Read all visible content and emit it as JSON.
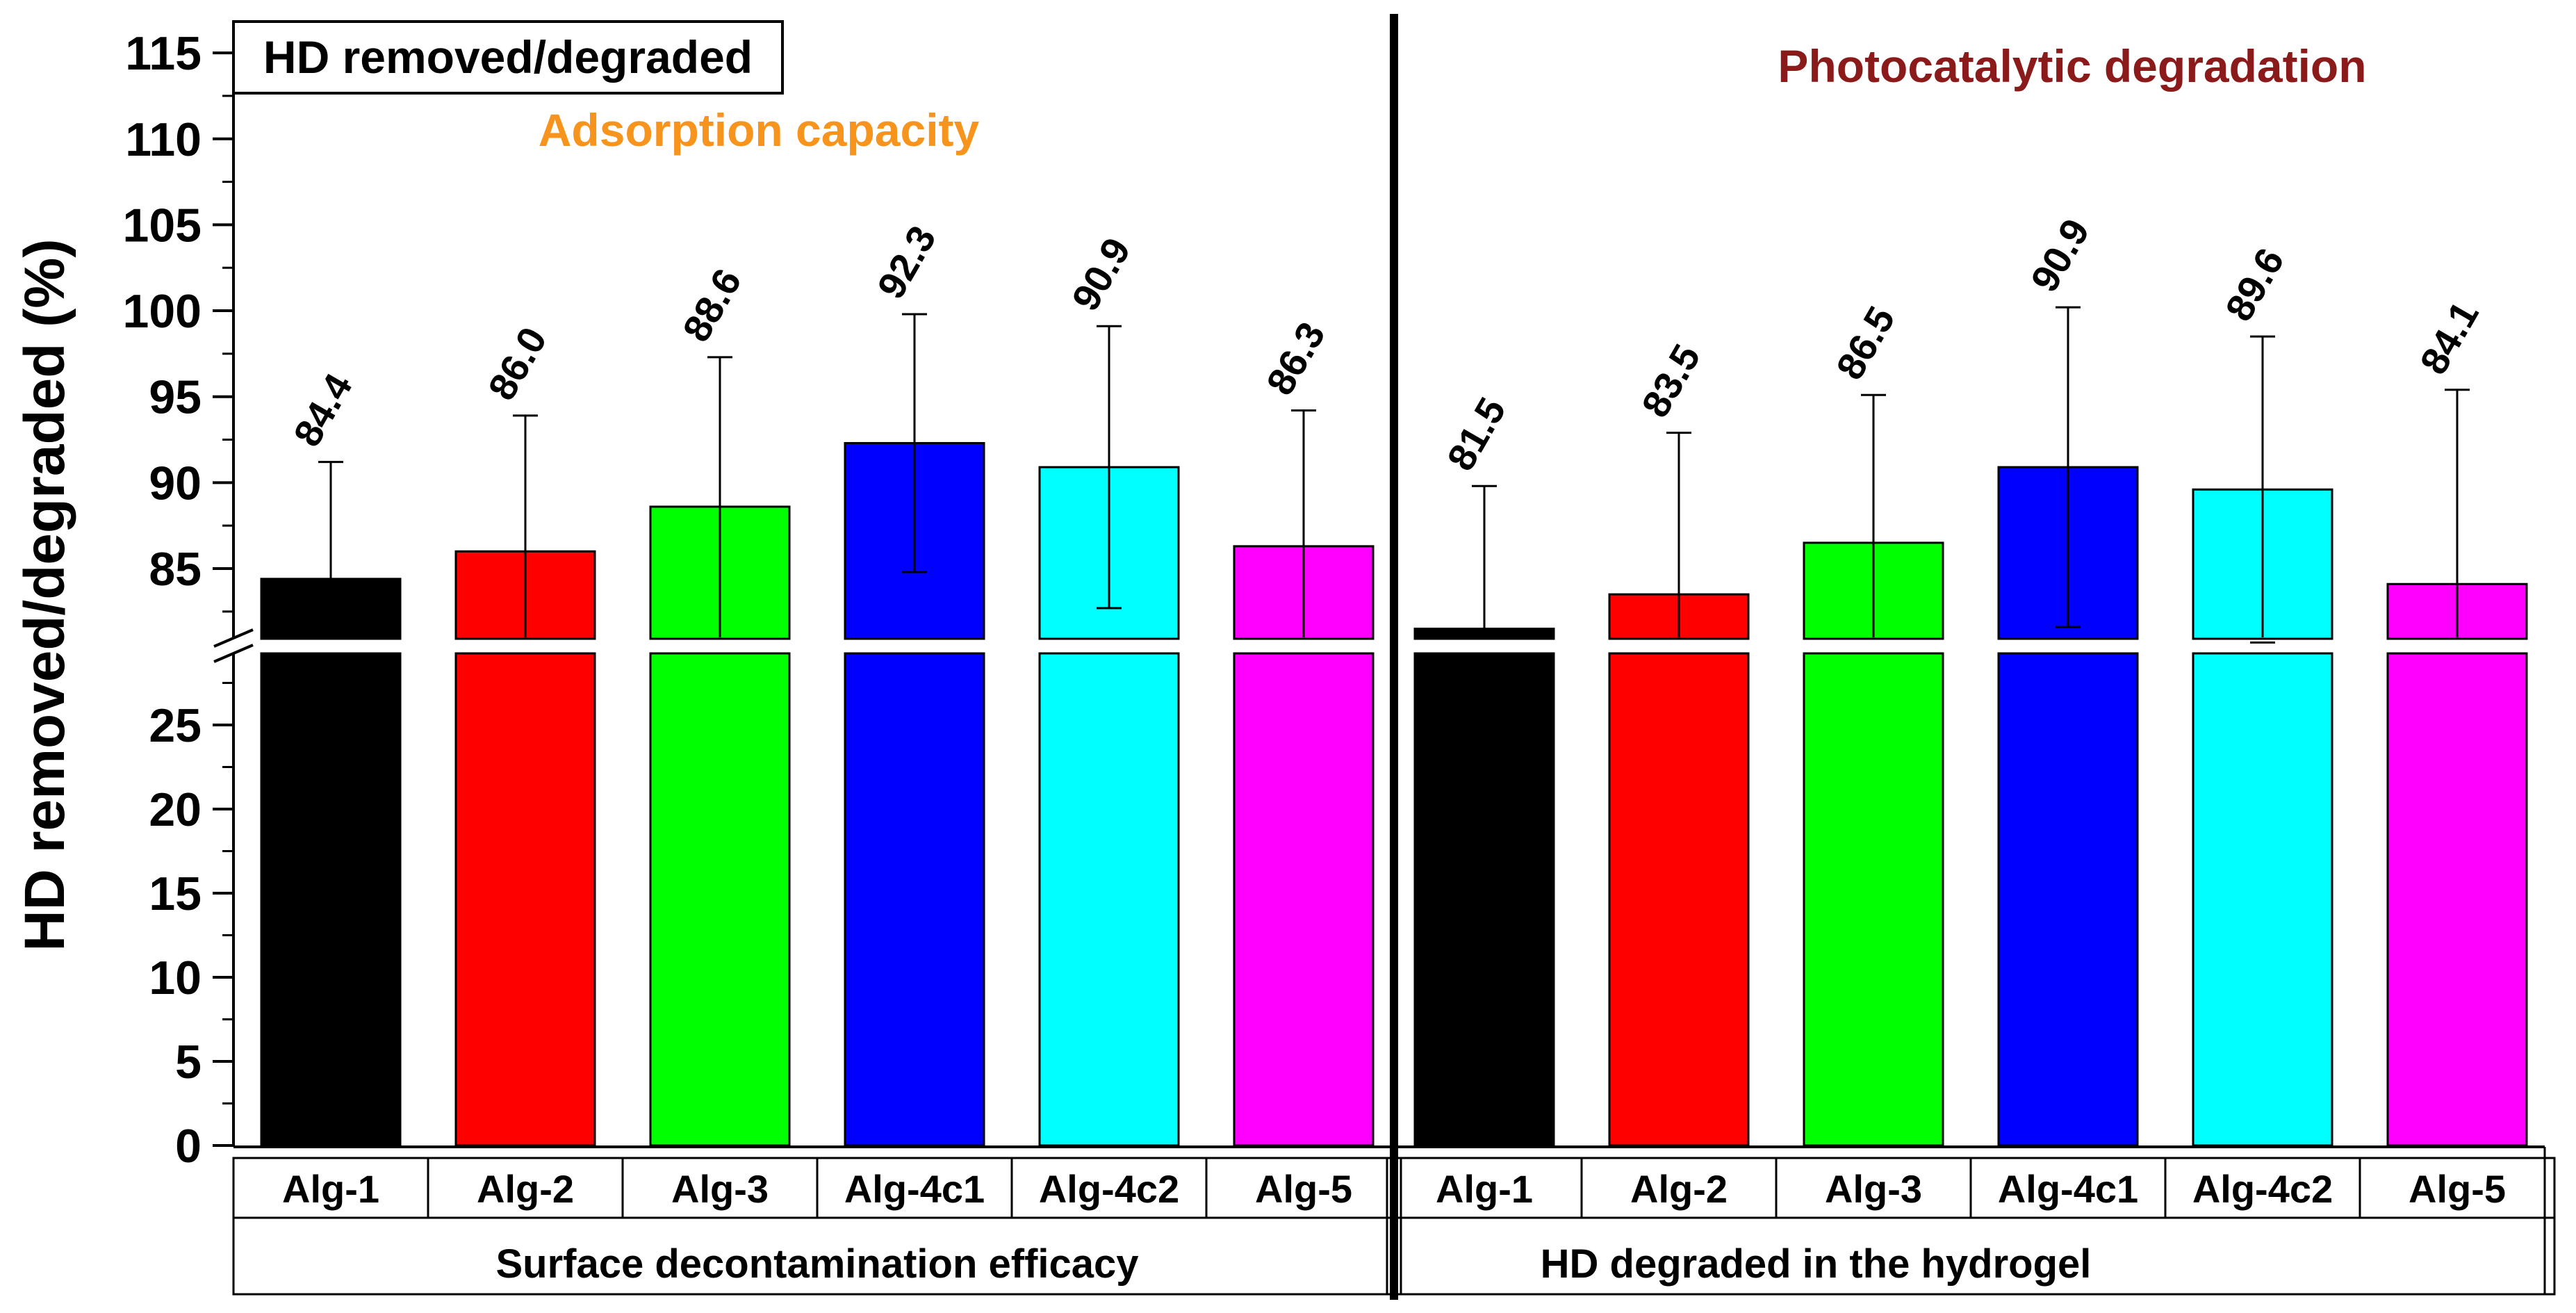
{
  "chart_data": {
    "type": "bar",
    "title": "",
    "ylabel": "HD removed/degraded (%)",
    "xlabel": "",
    "legend_box": "HD removed/degraded",
    "y_axis_break": {
      "lower_range": [
        0,
        28
      ],
      "upper_range": [
        80.5,
        116
      ]
    },
    "lower_ticks": [
      "0",
      "5",
      "10",
      "15",
      "20",
      "25"
    ],
    "upper_ticks": [
      "85",
      "90",
      "95",
      "100",
      "105",
      "110",
      "115"
    ],
    "groups": [
      {
        "name": "Surface decontamination efficacy",
        "annotation": "Adsorption capacity",
        "annotation_color": "#F7941D",
        "bars": [
          {
            "label": "Alg-1",
            "value": 84.4,
            "value_label": "84.4",
            "error": 6.8,
            "color": "#000000"
          },
          {
            "label": "Alg-2",
            "value": 86.0,
            "value_label": "86.0",
            "error": 7.9,
            "color": "#FF0000"
          },
          {
            "label": "Alg-3",
            "value": 88.6,
            "value_label": "88.6",
            "error": 8.7,
            "color": "#00FF00"
          },
          {
            "label": "Alg-4c1",
            "value": 92.3,
            "value_label": "92.3",
            "error": 7.5,
            "color": "#0000FF"
          },
          {
            "label": "Alg-4c2",
            "value": 90.9,
            "value_label": "90.9",
            "error": 8.2,
            "color": "#00FFFF"
          },
          {
            "label": "Alg-5",
            "value": 86.3,
            "value_label": "86.3",
            "error": 7.9,
            "color": "#FF00FF"
          }
        ]
      },
      {
        "name": "HD degraded in the hydrogel",
        "annotation": "Photocatalytic degradation",
        "annotation_color": "#8B1A1A",
        "bars": [
          {
            "label": "Alg-1",
            "value": 81.5,
            "value_label": "81.5",
            "error": 8.3,
            "color": "#000000"
          },
          {
            "label": "Alg-2",
            "value": 83.5,
            "value_label": "83.5",
            "error": 9.4,
            "color": "#FF0000"
          },
          {
            "label": "Alg-3",
            "value": 86.5,
            "value_label": "86.5",
            "error": 8.6,
            "color": "#00FF00"
          },
          {
            "label": "Alg-4c1",
            "value": 90.9,
            "value_label": "90.9",
            "error": 9.3,
            "color": "#0000FF"
          },
          {
            "label": "Alg-4c2",
            "value": 89.6,
            "value_label": "89.6",
            "error": 8.9,
            "color": "#00FFFF"
          },
          {
            "label": "Alg-5",
            "value": 84.1,
            "value_label": "84.1",
            "error": 11.3,
            "color": "#FF00FF"
          }
        ]
      }
    ]
  }
}
